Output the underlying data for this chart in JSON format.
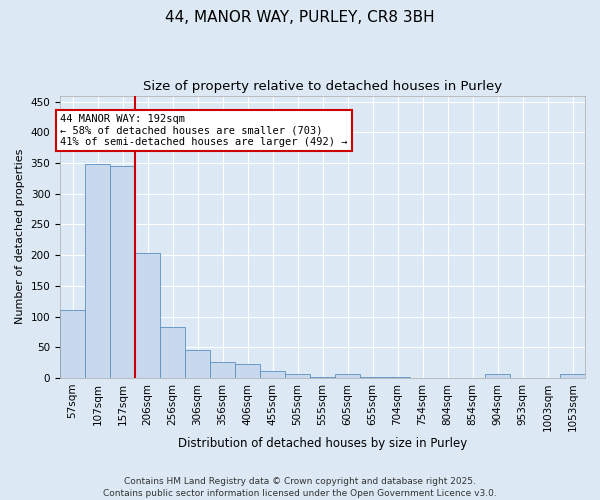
{
  "title1": "44, MANOR WAY, PURLEY, CR8 3BH",
  "title2": "Size of property relative to detached houses in Purley",
  "xlabel": "Distribution of detached houses by size in Purley",
  "ylabel": "Number of detached properties",
  "categories": [
    "57sqm",
    "107sqm",
    "157sqm",
    "206sqm",
    "256sqm",
    "306sqm",
    "356sqm",
    "406sqm",
    "455sqm",
    "505sqm",
    "555sqm",
    "605sqm",
    "655sqm",
    "704sqm",
    "754sqm",
    "804sqm",
    "854sqm",
    "904sqm",
    "953sqm",
    "1003sqm",
    "1053sqm"
  ],
  "values": [
    110,
    348,
    345,
    203,
    83,
    45,
    26,
    22,
    11,
    6,
    1,
    6,
    1,
    1,
    0,
    0,
    0,
    6,
    0,
    0,
    6
  ],
  "bar_color": "#c9d9ed",
  "bar_edgecolor": "#5a8fc0",
  "background_color": "#dce9f5",
  "grid_color": "#ffffff",
  "vline_x": 2.5,
  "vline_color": "#cc0000",
  "annotation_text": "44 MANOR WAY: 192sqm\n← 58% of detached houses are smaller (703)\n41% of semi-detached houses are larger (492) →",
  "annotation_box_color": "#ffffff",
  "annotation_box_edgecolor": "#cc0000",
  "footer": "Contains HM Land Registry data © Crown copyright and database right 2025.\nContains public sector information licensed under the Open Government Licence v3.0.",
  "ylim": [
    0,
    460
  ],
  "yticks": [
    0,
    50,
    100,
    150,
    200,
    250,
    300,
    350,
    400,
    450
  ],
  "title1_fontsize": 11,
  "title2_fontsize": 9.5,
  "xlabel_fontsize": 8.5,
  "ylabel_fontsize": 8,
  "tick_fontsize": 7.5,
  "annotation_fontsize": 7.5,
  "footer_fontsize": 6.5
}
